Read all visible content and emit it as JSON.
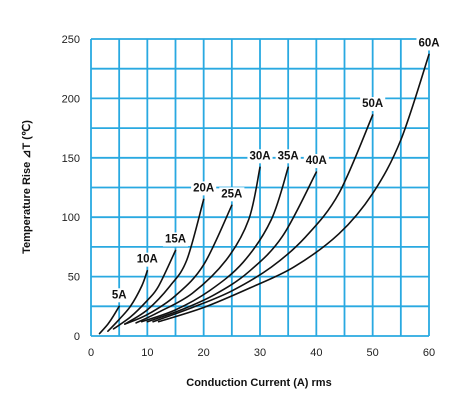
{
  "chart_data": {
    "type": "line",
    "title": "",
    "xlabel": "Conduction Current (A) rms",
    "ylabel": "Temperature Rise ⊿T (℃)",
    "xlim": [
      0,
      60
    ],
    "ylim": [
      0,
      250
    ],
    "xticks": [
      "0",
      "10",
      "20",
      "30",
      "40",
      "50",
      "60"
    ],
    "yticks": [
      "0",
      "50",
      "100",
      "150",
      "200",
      "250"
    ],
    "x_minor_step": 5,
    "y_minor_step": 25,
    "grid": true,
    "grid_color": "#29a9e1",
    "line_color": "#111111",
    "series": [
      {
        "name": "5A",
        "x": [
          1.5,
          3,
          4,
          5
        ],
        "y": [
          2,
          10,
          17,
          25
        ]
      },
      {
        "name": "10A",
        "x": [
          3,
          5,
          7,
          9,
          10
        ],
        "y": [
          4,
          14,
          25,
          42,
          55
        ]
      },
      {
        "name": "15A",
        "x": [
          4,
          7,
          10,
          12,
          15
        ],
        "y": [
          6,
          16,
          30,
          42,
          72
        ]
      },
      {
        "name": "20A",
        "x": [
          6,
          10,
          14,
          17,
          20
        ],
        "y": [
          10,
          22,
          42,
          64,
          115
        ]
      },
      {
        "name": "25A",
        "x": [
          6,
          10,
          15,
          20,
          25
        ],
        "y": [
          10,
          18,
          34,
          60,
          110
        ]
      },
      {
        "name": "30A",
        "x": [
          8,
          12,
          18,
          24,
          28,
          30
        ],
        "y": [
          11,
          20,
          36,
          64,
          98,
          142
        ]
      },
      {
        "name": "35A",
        "x": [
          9,
          15,
          21,
          27,
          32,
          35
        ],
        "y": [
          12,
          22,
          38,
          62,
          98,
          142
        ]
      },
      {
        "name": "40A",
        "x": [
          10,
          16,
          22,
          28,
          34,
          40
        ],
        "y": [
          12,
          22,
          35,
          54,
          84,
          138
        ]
      },
      {
        "name": "50A",
        "x": [
          11,
          18,
          25,
          32,
          38,
          44,
          50
        ],
        "y": [
          12,
          24,
          38,
          58,
          83,
          120,
          186
        ]
      },
      {
        "name": "60A",
        "x": [
          12,
          20,
          28,
          36,
          44,
          50,
          55,
          60
        ],
        "y": [
          12,
          24,
          40,
          58,
          86,
          120,
          165,
          237
        ]
      }
    ]
  }
}
